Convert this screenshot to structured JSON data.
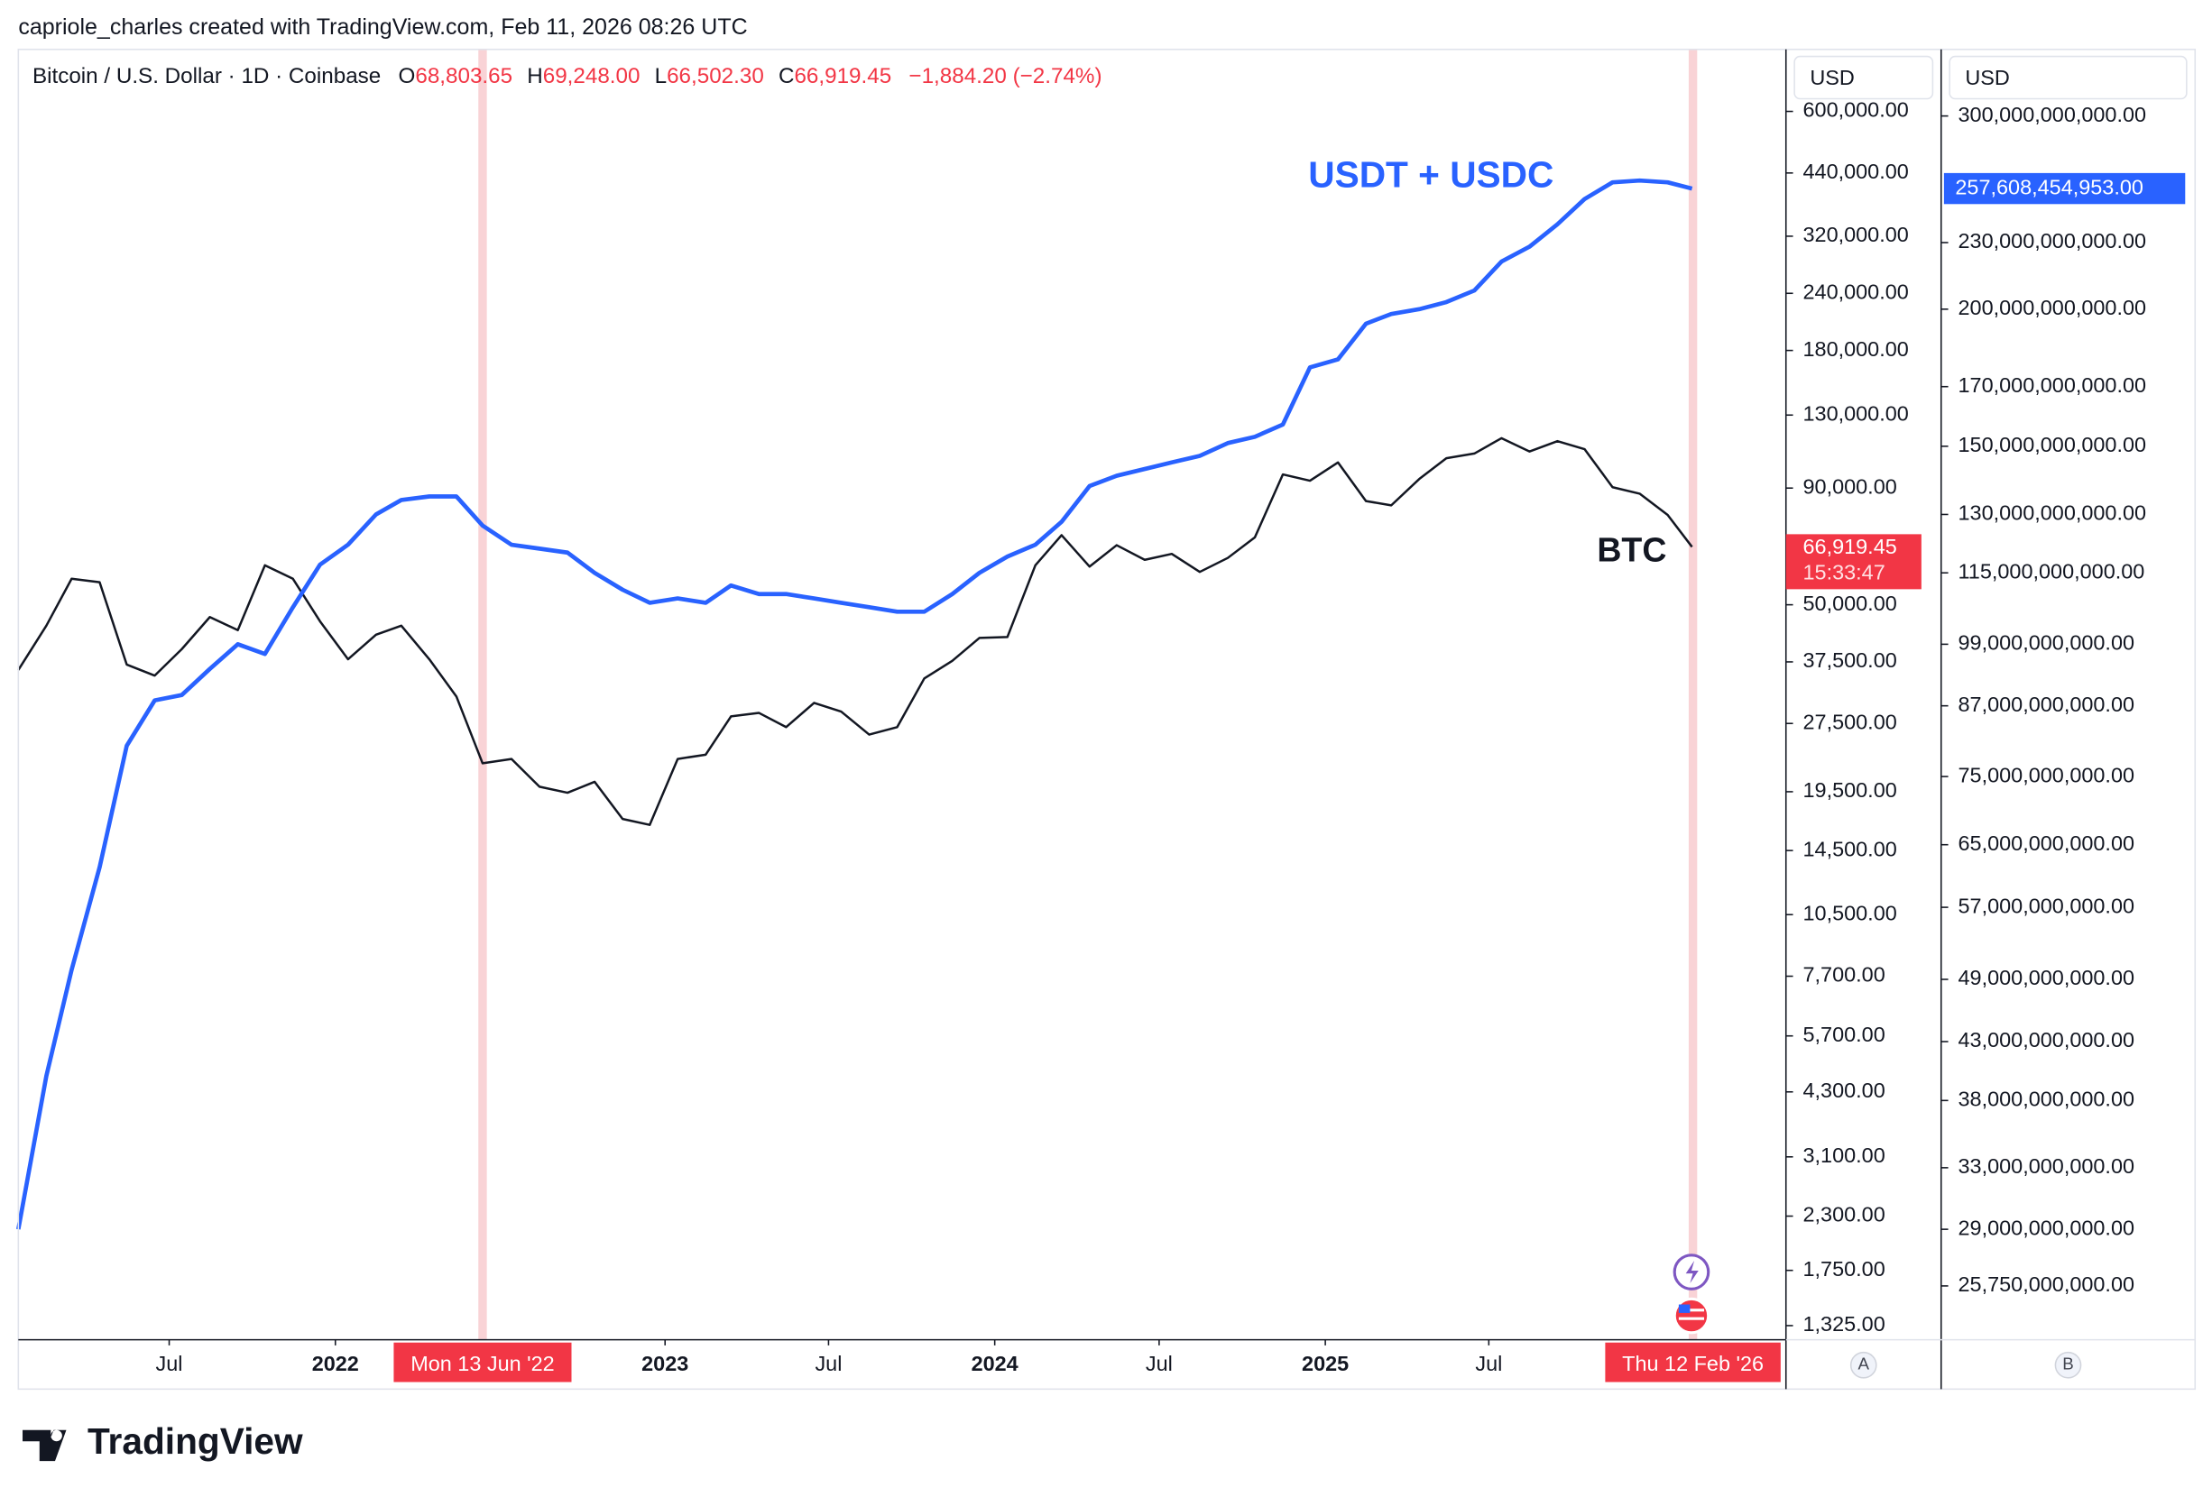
{
  "header": {
    "credit": "capriole_charles created with TradingView.com, Feb 11, 2026 08:26 UTC",
    "symbol": "Bitcoin / U.S. Dollar · 1D · Coinbase",
    "ohlc": [
      {
        "key": "O",
        "value": "68,803.65"
      },
      {
        "key": "H",
        "value": "69,248.00"
      },
      {
        "key": "L",
        "value": "66,502.30"
      },
      {
        "key": "C",
        "value": "66,919.45"
      }
    ],
    "change": "−1,884.20 (−2.74%)"
  },
  "chart_data": {
    "type": "line",
    "x": [
      "2021-01-15",
      "2021-02-15",
      "2021-03-15",
      "2021-04-15",
      "2021-05-15",
      "2021-06-15",
      "2021-07-15",
      "2021-08-15",
      "2021-09-15",
      "2021-10-15",
      "2021-11-15",
      "2021-12-15",
      "2022-01-15",
      "2022-02-15",
      "2022-03-15",
      "2022-04-15",
      "2022-05-15",
      "2022-06-13",
      "2022-07-15",
      "2022-08-15",
      "2022-09-15",
      "2022-10-15",
      "2022-11-15",
      "2022-12-15",
      "2023-01-15",
      "2023-02-15",
      "2023-03-15",
      "2023-04-15",
      "2023-05-15",
      "2023-06-15",
      "2023-07-15",
      "2023-08-15",
      "2023-09-15",
      "2023-10-15",
      "2023-11-15",
      "2023-12-15",
      "2024-01-15",
      "2024-02-15",
      "2024-03-15",
      "2024-04-15",
      "2024-05-15",
      "2024-06-15",
      "2024-07-15",
      "2024-08-15",
      "2024-09-15",
      "2024-10-15",
      "2024-11-15",
      "2024-12-15",
      "2025-01-15",
      "2025-02-15",
      "2025-03-15",
      "2025-04-15",
      "2025-05-15",
      "2025-06-15",
      "2025-07-15",
      "2025-08-15",
      "2025-09-15",
      "2025-10-15",
      "2025-11-15",
      "2025-12-15",
      "2026-01-15",
      "2026-02-11"
    ],
    "series": [
      {
        "name": "BTC",
        "color": "#131722",
        "axis": "y",
        "values": [
          36000,
          45000,
          57000,
          56000,
          37000,
          35000,
          40000,
          47000,
          44000,
          61000,
          57000,
          46000,
          38000,
          43000,
          45000,
          38000,
          31500,
          22500,
          23000,
          20000,
          19400,
          20500,
          17000,
          16500,
          23000,
          23500,
          28500,
          29000,
          27000,
          30500,
          29200,
          26000,
          27000,
          34500,
          37700,
          42300,
          42500,
          61000,
          71000,
          60600,
          67500,
          62700,
          64600,
          59000,
          63300,
          70200,
          96400,
          93400,
          102400,
          84300,
          82500,
          94200,
          104600,
          107100,
          115700,
          108200,
          114000,
          109500,
          90400,
          87500,
          78600,
          66919.45
        ]
      },
      {
        "name": "USDT + USDC",
        "color": "#2962ff",
        "axis": "y2",
        "values": [
          29000000000,
          40000000000,
          50000000000,
          62000000000,
          80000000000,
          88000000000,
          89000000000,
          94000000000,
          99000000000,
          97000000000,
          107000000000,
          117000000000,
          122000000000,
          130000000000,
          134000000000,
          135000000000,
          135000000000,
          127000000000,
          122000000000,
          121000000000,
          120000000000,
          115000000000,
          111000000000,
          108000000000,
          109000000000,
          108000000000,
          112000000000,
          110000000000,
          110000000000,
          109000000000,
          108000000000,
          107000000000,
          106000000000,
          106000000000,
          110000000000,
          115000000000,
          119000000000,
          122000000000,
          128000000000,
          138000000000,
          141000000000,
          143000000000,
          145000000000,
          147000000000,
          151000000000,
          153000000000,
          157000000000,
          177000000000,
          180000000000,
          194000000000,
          198000000000,
          200000000000,
          203000000000,
          208000000000,
          221000000000,
          228000000000,
          239000000000,
          252000000000,
          261000000000,
          262000000000,
          261000000000,
          257608454953
        ]
      }
    ],
    "log_scale": true,
    "xlim": [
      "2021-01-15",
      "2026-05-26"
    ],
    "xticks": [
      {
        "value": "2021-07-01",
        "label": "Jul"
      },
      {
        "value": "2022-01-01",
        "label": "2022"
      },
      {
        "value": "2023-01-01",
        "label": "2023"
      },
      {
        "value": "2023-07-01",
        "label": "Jul"
      },
      {
        "value": "2024-01-01",
        "label": "2024"
      },
      {
        "value": "2024-07-01",
        "label": "Jul"
      },
      {
        "value": "2025-01-01",
        "label": "2025"
      },
      {
        "value": "2025-07-01",
        "label": "Jul"
      }
    ],
    "ylim": [
      1234,
      820000
    ],
    "yticks": [
      {
        "value": 600000,
        "label": "600,000.00"
      },
      {
        "value": 440000,
        "label": "440,000.00"
      },
      {
        "value": 320000,
        "label": "320,000.00"
      },
      {
        "value": 240000,
        "label": "240,000.00"
      },
      {
        "value": 180000,
        "label": "180,000.00"
      },
      {
        "value": 130000,
        "label": "130,000.00"
      },
      {
        "value": 90000,
        "label": "90,000.00"
      },
      {
        "value": 50000,
        "label": "50,000.00"
      },
      {
        "value": 37500,
        "label": "37,500.00"
      },
      {
        "value": 27500,
        "label": "27,500.00"
      },
      {
        "value": 19500,
        "label": "19,500.00"
      },
      {
        "value": 14500,
        "label": "14,500.00"
      },
      {
        "value": 10500,
        "label": "10,500.00"
      },
      {
        "value": 7700,
        "label": "7,700.00"
      },
      {
        "value": 5700,
        "label": "5,700.00"
      },
      {
        "value": 4300,
        "label": "4,300.00"
      },
      {
        "value": 3100,
        "label": "3,100.00"
      },
      {
        "value": 2300,
        "label": "2,300.00"
      },
      {
        "value": 1750,
        "label": "1,750.00"
      },
      {
        "value": 1325,
        "label": "1,325.00"
      }
    ],
    "y2lim": [
      23000000000,
      345000000000
    ],
    "y2ticks": [
      {
        "value": 300000000000,
        "label": "300,000,000,000.00"
      },
      {
        "value": 230000000000,
        "label": "230,000,000,000.00"
      },
      {
        "value": 200000000000,
        "label": "200,000,000,000.00"
      },
      {
        "value": 170000000000,
        "label": "170,000,000,000.00"
      },
      {
        "value": 150000000000,
        "label": "150,000,000,000.00"
      },
      {
        "value": 130000000000,
        "label": "130,000,000,000.00"
      },
      {
        "value": 115000000000,
        "label": "115,000,000,000.00"
      },
      {
        "value": 99000000000,
        "label": "99,000,000,000.00"
      },
      {
        "value": 87000000000,
        "label": "87,000,000,000.00"
      },
      {
        "value": 75000000000,
        "label": "75,000,000,000.00"
      },
      {
        "value": 65000000000,
        "label": "65,000,000,000.00"
      },
      {
        "value": 57000000000,
        "label": "57,000,000,000.00"
      },
      {
        "value": 49000000000,
        "label": "49,000,000,000.00"
      },
      {
        "value": 43000000000,
        "label": "43,000,000,000.00"
      },
      {
        "value": 38000000000,
        "label": "38,000,000,000.00"
      },
      {
        "value": 33000000000,
        "label": "33,000,000,000.00"
      },
      {
        "value": 29000000000,
        "label": "29,000,000,000.00"
      },
      {
        "value": 25750000000,
        "label": "25,750,000,000.00"
      }
    ],
    "highlights": [
      {
        "x": "2022-06-13",
        "label": "Mon 13 Jun '22"
      },
      {
        "x": "2026-02-12",
        "label": "Thu 12 Feb '26"
      }
    ],
    "axis_a": {
      "unit": "USD",
      "name": "A",
      "price_tag": "66,919.45",
      "countdown": "15:33:47"
    },
    "axis_b": {
      "unit": "USD",
      "name": "B",
      "price_tag": "257,608,454,953.00"
    },
    "brand": "TradingView"
  }
}
